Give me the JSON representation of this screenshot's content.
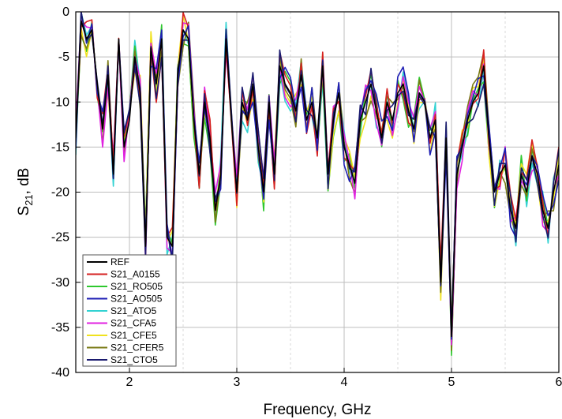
{
  "chart_data": {
    "type": "line",
    "xlabel": "Frequency, GHz",
    "ylabel_main": "S",
    "ylabel_sub": "21",
    "ylabel_rest": ", dB",
    "xlim": [
      1.5,
      6
    ],
    "ylim": [
      -40,
      0
    ],
    "x_ticks": [
      2,
      3,
      4,
      5,
      6
    ],
    "x_tick_labels": [
      "2",
      "3",
      "4",
      "5",
      "6"
    ],
    "y_ticks": [
      0,
      -5,
      -10,
      -15,
      -20,
      -25,
      -30,
      -35,
      -40
    ],
    "y_tick_labels": [
      "0",
      "-5",
      "-10",
      "-15",
      "-20",
      "-25",
      "-30",
      "-35",
      "-40"
    ],
    "grid": true,
    "legend_position": "bottom-left",
    "series": [
      {
        "name": "REF",
        "color": "#000000"
      },
      {
        "name": "S21_A0155",
        "color": "#d62020"
      },
      {
        "name": "S21_RO505",
        "color": "#2ec82e"
      },
      {
        "name": "S21_AO505",
        "color": "#1e1eb4"
      },
      {
        "name": "S21_ATO5",
        "color": "#32d2d2"
      },
      {
        "name": "S21_CFA5",
        "color": "#e020e0"
      },
      {
        "name": "S21_CFE5",
        "color": "#f0e21e"
      },
      {
        "name": "S21_CFER5",
        "color": "#7a7a14"
      },
      {
        "name": "S21_CTO5",
        "color": "#1a1a6e"
      }
    ],
    "base_x": [
      1.5,
      1.55,
      1.6,
      1.65,
      1.7,
      1.75,
      1.8,
      1.85,
      1.9,
      1.95,
      2.0,
      2.05,
      2.1,
      2.15,
      2.2,
      2.25,
      2.3,
      2.35,
      2.4,
      2.45,
      2.5,
      2.55,
      2.6,
      2.65,
      2.7,
      2.75,
      2.8,
      2.85,
      2.9,
      2.95,
      3.0,
      3.05,
      3.1,
      3.15,
      3.2,
      3.25,
      3.3,
      3.35,
      3.4,
      3.45,
      3.5,
      3.55,
      3.6,
      3.65,
      3.7,
      3.75,
      3.8,
      3.85,
      3.9,
      3.95,
      4.0,
      4.05,
      4.1,
      4.15,
      4.2,
      4.25,
      4.3,
      4.35,
      4.4,
      4.45,
      4.5,
      4.55,
      4.6,
      4.65,
      4.7,
      4.75,
      4.8,
      4.85,
      4.9,
      4.95,
      5.0,
      5.05,
      5.1,
      5.15,
      5.2,
      5.25,
      5.3,
      5.35,
      5.4,
      5.45,
      5.5,
      5.55,
      5.6,
      5.65,
      5.7,
      5.75,
      5.8,
      5.85,
      5.9,
      5.95,
      6.0
    ],
    "base_y": [
      -14,
      -1,
      -3,
      -2,
      -8,
      -13,
      -7,
      -18,
      -3,
      -15,
      -12,
      -5,
      -9,
      -26,
      -4,
      -8,
      -3,
      -25,
      -26,
      -7,
      -2,
      -3,
      -12,
      -18,
      -10,
      -14,
      -22,
      -18,
      -3,
      -12,
      -20,
      -10,
      -12,
      -8,
      -15,
      -20,
      -10,
      -18,
      -6,
      -8,
      -9,
      -11,
      -7,
      -12,
      -10,
      -14,
      -6,
      -18,
      -12,
      -9,
      -15,
      -17,
      -19,
      -12,
      -10,
      -8,
      -11,
      -14,
      -10,
      -12,
      -9,
      -8,
      -11,
      -13,
      -9,
      -10,
      -14,
      -12,
      -30,
      -14,
      -36,
      -18,
      -15,
      -12,
      -10,
      -9,
      -6,
      -14,
      -20,
      -18,
      -17,
      -22,
      -24,
      -18,
      -20,
      -16,
      -18,
      -22,
      -24,
      -20,
      -17
    ]
  }
}
